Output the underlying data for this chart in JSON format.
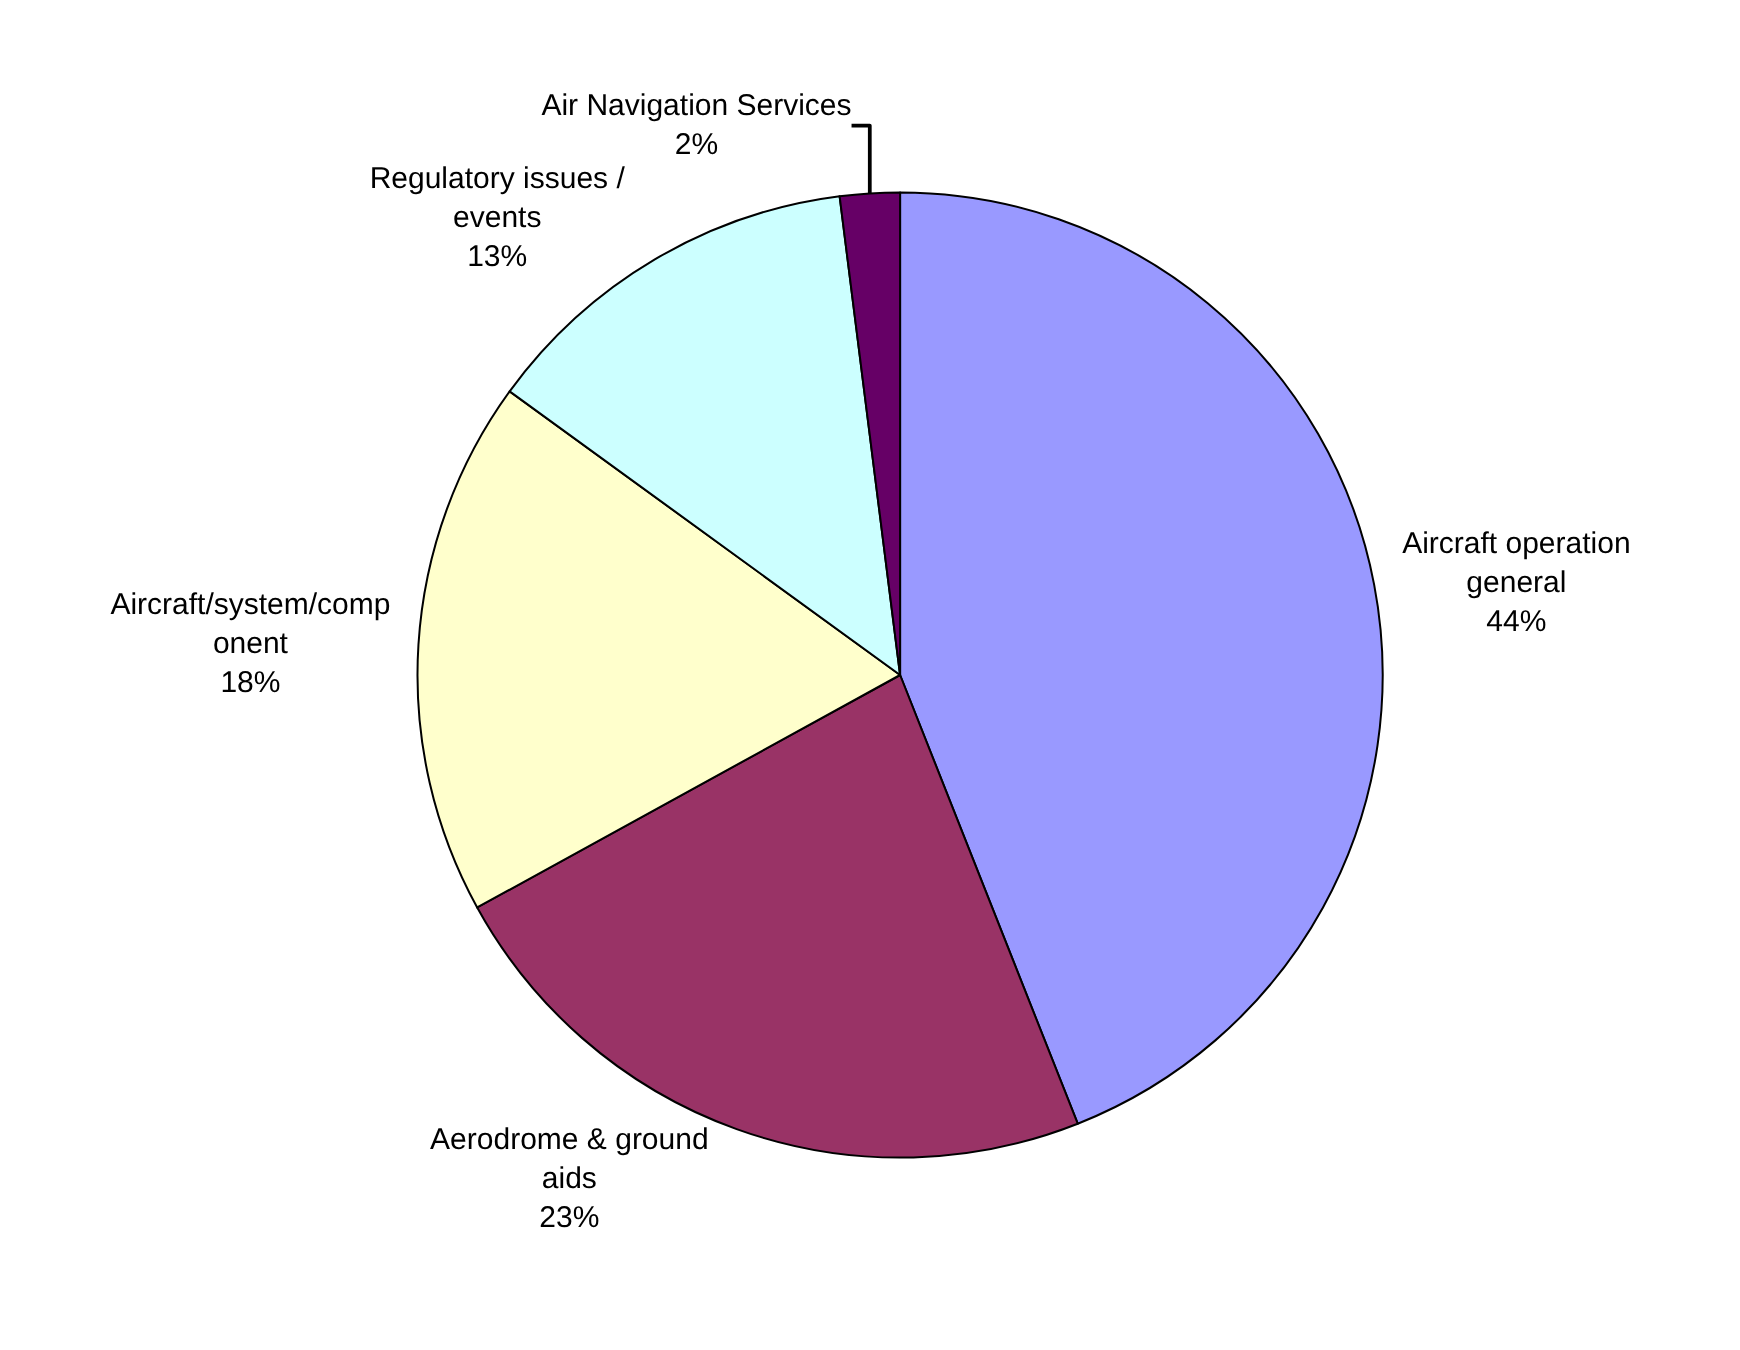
{
  "chart_data": {
    "type": "pie",
    "categories": [
      "Aircraft operation\ngeneral",
      "Aerodrome & ground\naids",
      "Aircraft/system/comp\nonent",
      "Regulatory issues /\nevents",
      "Air Navigation Services"
    ],
    "values": [
      44,
      23,
      18,
      13,
      2
    ],
    "value_labels": [
      "44%",
      "23%",
      "18%",
      "13%",
      "2%"
    ],
    "colors": [
      "#9999ff",
      "#993366",
      "#ffffcc",
      "#ccffff",
      "#660066"
    ],
    "legend": false
  }
}
